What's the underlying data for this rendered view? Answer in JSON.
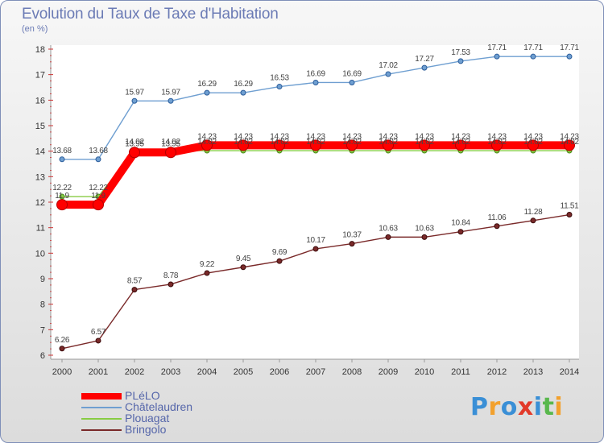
{
  "header": {
    "title": "Evolution du Taux de Taxe d'Habitation",
    "unit": "(en %)"
  },
  "brand": "Proxiti",
  "chart_data": {
    "type": "line",
    "title": "Evolution du Taux de Taxe d'Habitation",
    "ylabel": "(en %)",
    "xlabel": "",
    "x": [
      "2000",
      "2001",
      "2002",
      "2003",
      "2004",
      "2005",
      "2006",
      "2007",
      "2008",
      "2009",
      "2010",
      "2011",
      "2012",
      "2013",
      "2014"
    ],
    "ylim": [
      6,
      18
    ],
    "yticks": [
      6,
      7,
      8,
      9,
      10,
      11,
      12,
      13,
      14,
      15,
      16,
      17,
      18
    ],
    "grid": false,
    "legend_position": "bottom-left",
    "series": [
      {
        "name": "PLéLO",
        "color": "#ff0000",
        "values": [
          11.9,
          11.9,
          13.95,
          13.95,
          14.23,
          14.23,
          14.23,
          14.23,
          14.23,
          14.23,
          14.23,
          14.23,
          14.23,
          14.23,
          14.23
        ],
        "labels": [
          "11.9",
          "11.9",
          "13.95",
          "13.95",
          "14.23",
          "14.23",
          "14.23",
          "14.23",
          "14.23",
          "14.23",
          "14.23",
          "14.23",
          "14.23",
          "14.23",
          "14.23"
        ]
      },
      {
        "name": "Châtelaudren",
        "color": "#6f9fd1",
        "values": [
          13.68,
          13.68,
          15.97,
          15.97,
          16.29,
          16.29,
          16.53,
          16.69,
          16.69,
          17.02,
          17.27,
          17.53,
          17.71,
          17.71,
          17.71
        ],
        "labels": [
          "13.68",
          "13.68",
          "15.97",
          "15.97",
          "16.29",
          "16.29",
          "16.53",
          "16.69",
          "16.69",
          "17.02",
          "17.27",
          "17.53",
          "17.71",
          "17.71",
          "17.71"
        ]
      },
      {
        "name": "Plouagat",
        "color": "#88cc44",
        "values": [
          12.22,
          12.22,
          14.02,
          14.02,
          14.02,
          14.02,
          14.02,
          14.02,
          14.02,
          14.02,
          14.02,
          14.02,
          14.02,
          14.02,
          14.02
        ],
        "labels": [
          "12.22",
          "12.22",
          "14.02",
          "14.02",
          "14.02",
          "14.02",
          "14.02",
          "14.02",
          "14.02",
          "14.02",
          "14.02",
          "14.02",
          "14.02",
          "14.02",
          "14.02"
        ]
      },
      {
        "name": "Bringolo",
        "color": "#7a2a2a",
        "values": [
          6.26,
          6.57,
          8.57,
          8.78,
          9.22,
          9.45,
          9.69,
          10.17,
          10.37,
          10.63,
          10.63,
          10.84,
          11.06,
          11.28,
          11.51
        ],
        "labels": [
          "6.26",
          "6.57",
          "8.57",
          "8.78",
          "9.22",
          "9.45",
          "9.69",
          "10.17",
          "10.37",
          "10.63",
          "10.63",
          "10.84",
          "11.06",
          "11.28",
          "11.51"
        ]
      }
    ]
  }
}
